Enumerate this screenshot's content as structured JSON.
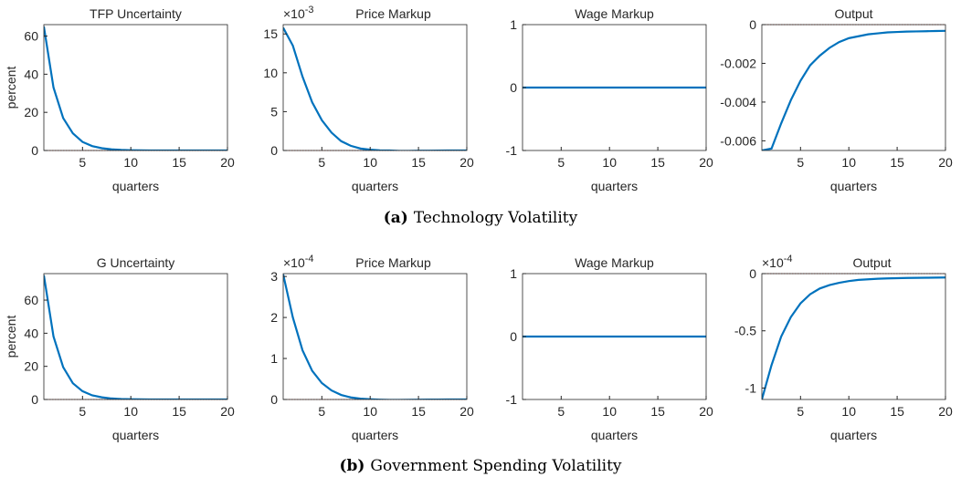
{
  "chart_data": [
    {
      "type": "line",
      "title": "TFP Uncertainty",
      "xlabel": "quarters",
      "ylabel": "percent",
      "x": [
        1,
        2,
        3,
        4,
        5,
        6,
        7,
        8,
        9,
        10,
        11,
        12,
        13,
        14,
        15,
        16,
        17,
        18,
        19,
        20
      ],
      "values": [
        65,
        33,
        17,
        9,
        4.5,
        2.3,
        1.2,
        0.6,
        0.3,
        0.15,
        0.08,
        0.04,
        0.02,
        0.01,
        0,
        0,
        0,
        0,
        0,
        0
      ],
      "color": "#0072bd",
      "xlim": [
        1,
        20
      ],
      "xticks": [
        5,
        10,
        15,
        20
      ],
      "ylim": [
        0,
        66
      ],
      "yticks": [
        0,
        20,
        40,
        60
      ],
      "reference_line": {
        "value": 0,
        "color": "#c0392b"
      }
    },
    {
      "type": "line",
      "title": "Price Markup",
      "xlabel": "quarters",
      "y_scale_base": "×10",
      "y_scale_exponent": "-3",
      "x": [
        1,
        2,
        3,
        4,
        5,
        6,
        7,
        8,
        9,
        10,
        11,
        12,
        13,
        14,
        15,
        16,
        17,
        18,
        19,
        20
      ],
      "values": [
        15.8,
        13.5,
        9.5,
        6.2,
        3.9,
        2.3,
        1.2,
        0.6,
        0.25,
        0.1,
        0.02,
        0,
        -0.05,
        -0.05,
        -0.03,
        -0.02,
        -0.01,
        0,
        0,
        0
      ],
      "color": "#0072bd",
      "xlim": [
        1,
        20
      ],
      "xticks": [
        5,
        10,
        15,
        20
      ],
      "ylim": [
        0,
        16.2
      ],
      "yticks": [
        0,
        5,
        10,
        15
      ],
      "reference_line": {
        "value": 0,
        "color": "#c0392b"
      }
    },
    {
      "type": "line",
      "title": "Wage Markup",
      "xlabel": "quarters",
      "x": [
        1,
        2,
        3,
        4,
        5,
        6,
        7,
        8,
        9,
        10,
        11,
        12,
        13,
        14,
        15,
        16,
        17,
        18,
        19,
        20
      ],
      "values": [
        0,
        0,
        0,
        0,
        0,
        0,
        0,
        0,
        0,
        0,
        0,
        0,
        0,
        0,
        0,
        0,
        0,
        0,
        0,
        0
      ],
      "color": "#0072bd",
      "xlim": [
        1,
        20
      ],
      "xticks": [
        5,
        10,
        15,
        20
      ],
      "ylim": [
        -1,
        1
      ],
      "yticks": [
        -1,
        0,
        1
      ],
      "reference_line": {
        "value": 0,
        "color": "#c0392b"
      }
    },
    {
      "type": "line",
      "title": "Output",
      "xlabel": "quarters",
      "x": [
        1,
        2,
        3,
        4,
        5,
        6,
        7,
        8,
        9,
        10,
        11,
        12,
        13,
        14,
        15,
        16,
        17,
        18,
        19,
        20
      ],
      "values": [
        -0.0065,
        -0.0064,
        -0.0051,
        -0.0039,
        -0.0029,
        -0.0021,
        -0.0016,
        -0.0012,
        -0.0009,
        -0.0007,
        -0.0006,
        -0.0005,
        -0.00045,
        -0.0004,
        -0.00038,
        -0.00036,
        -0.00035,
        -0.00034,
        -0.00033,
        -0.00032
      ],
      "color": "#0072bd",
      "xlim": [
        1,
        20
      ],
      "xticks": [
        5,
        10,
        15,
        20
      ],
      "ylim": [
        -0.0065,
        0
      ],
      "yticks": [
        -0.006,
        -0.004,
        -0.002,
        0
      ],
      "reference_line": {
        "value": 0,
        "color": "#c0392b"
      }
    },
    {
      "type": "line",
      "title": "G Uncertainty",
      "xlabel": "quarters",
      "ylabel": "percent",
      "x": [
        1,
        2,
        3,
        4,
        5,
        6,
        7,
        8,
        9,
        10,
        11,
        12,
        13,
        14,
        15,
        16,
        17,
        18,
        19,
        20
      ],
      "values": [
        75,
        38,
        19.5,
        9.8,
        5,
        2.5,
        1.3,
        0.6,
        0.3,
        0.15,
        0.08,
        0.04,
        0.02,
        0.01,
        0,
        0,
        0,
        0,
        0,
        0
      ],
      "color": "#0072bd",
      "xlim": [
        1,
        20
      ],
      "xticks": [
        5,
        10,
        15,
        20
      ],
      "ylim": [
        0,
        76
      ],
      "yticks": [
        0,
        20,
        40,
        60
      ],
      "reference_line": {
        "value": 0,
        "color": "#c0392b"
      }
    },
    {
      "type": "line",
      "title": "Price Markup",
      "xlabel": "quarters",
      "y_scale_base": "×10",
      "y_scale_exponent": "-4",
      "x": [
        1,
        2,
        3,
        4,
        5,
        6,
        7,
        8,
        9,
        10,
        11,
        12,
        13,
        14,
        15,
        16,
        17,
        18,
        19,
        20
      ],
      "values": [
        3.05,
        2.0,
        1.2,
        0.7,
        0.4,
        0.22,
        0.11,
        0.05,
        0.02,
        0.005,
        -0.005,
        -0.01,
        -0.01,
        -0.008,
        -0.005,
        -0.003,
        -0.002,
        0,
        0,
        0
      ],
      "color": "#0072bd",
      "xlim": [
        1,
        20
      ],
      "xticks": [
        5,
        10,
        15,
        20
      ],
      "ylim": [
        0,
        3.07
      ],
      "yticks": [
        0,
        1,
        2,
        3
      ],
      "reference_line": {
        "value": 0,
        "color": "#c0392b"
      }
    },
    {
      "type": "line",
      "title": "Wage Markup",
      "xlabel": "quarters",
      "x": [
        1,
        2,
        3,
        4,
        5,
        6,
        7,
        8,
        9,
        10,
        11,
        12,
        13,
        14,
        15,
        16,
        17,
        18,
        19,
        20
      ],
      "values": [
        0,
        0,
        0,
        0,
        0,
        0,
        0,
        0,
        0,
        0,
        0,
        0,
        0,
        0,
        0,
        0,
        0,
        0,
        0,
        0
      ],
      "color": "#0072bd",
      "xlim": [
        1,
        20
      ],
      "xticks": [
        5,
        10,
        15,
        20
      ],
      "ylim": [
        -1,
        1
      ],
      "yticks": [
        -1,
        0,
        1
      ],
      "reference_line": {
        "value": 0,
        "color": "#c0392b"
      }
    },
    {
      "type": "line",
      "title": "Output",
      "xlabel": "quarters",
      "y_scale_base": "×10",
      "y_scale_exponent": "-4",
      "x": [
        1,
        2,
        3,
        4,
        5,
        6,
        7,
        8,
        9,
        10,
        11,
        12,
        13,
        14,
        15,
        16,
        17,
        18,
        19,
        20
      ],
      "values": [
        -1.1,
        -0.8,
        -0.55,
        -0.38,
        -0.26,
        -0.18,
        -0.13,
        -0.1,
        -0.08,
        -0.065,
        -0.055,
        -0.05,
        -0.045,
        -0.042,
        -0.04,
        -0.038,
        -0.037,
        -0.036,
        -0.035,
        -0.034
      ],
      "color": "#0072bd",
      "xlim": [
        1,
        20
      ],
      "xticks": [
        5,
        10,
        15,
        20
      ],
      "ylim": [
        -1.1,
        0
      ],
      "yticks": [
        -1,
        -0.5,
        0
      ],
      "reference_line": {
        "value": 0,
        "color": "#c0392b"
      }
    }
  ],
  "captions": [
    {
      "label": "(a)",
      "text": "Technology Volatility"
    },
    {
      "label": "(b)",
      "text": "Government Spending Volatility"
    }
  ]
}
